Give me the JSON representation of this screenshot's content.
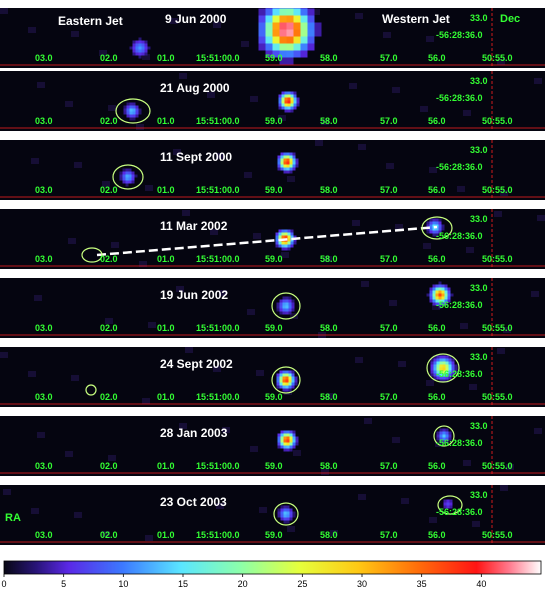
{
  "labels": {
    "eastern": "Eastern Jet",
    "western": "Western Jet",
    "ra": "RA",
    "dec": "Dec"
  },
  "ra_ticks": [
    "03.0",
    "02.0",
    "01.0",
    "15:51:00.0",
    "59.0",
    "58.0",
    "57.0",
    "56.0",
    "50:55.0"
  ],
  "dec_ticks": [
    "33.0",
    "-56:28:36.0"
  ],
  "panels": [
    {
      "date": "9 Jun 2000",
      "ellipses": [],
      "sources": [
        {
          "kind": "east",
          "dx": 140,
          "dy": 40,
          "r": 12,
          "peak": 0.25
        },
        {
          "kind": "core",
          "dx": 287,
          "dy": 22,
          "r": 32,
          "peak": 1.0
        }
      ]
    },
    {
      "date": "21 Aug 2000",
      "ellipses": [
        {
          "cx": 133,
          "cy": 40,
          "rx": 17,
          "ry": 12
        }
      ],
      "sources": [
        {
          "kind": "east",
          "dx": 132,
          "dy": 40,
          "r": 10,
          "peak": 0.3
        },
        {
          "kind": "core",
          "dx": 288,
          "dy": 30,
          "r": 11,
          "peak": 0.9
        }
      ]
    },
    {
      "date": "11 Sept 2000",
      "ellipses": [
        {
          "cx": 128,
          "cy": 37,
          "rx": 15,
          "ry": 12
        }
      ],
      "sources": [
        {
          "kind": "east",
          "dx": 128,
          "dy": 37,
          "r": 10,
          "peak": 0.28
        },
        {
          "kind": "core",
          "dx": 287,
          "dy": 22,
          "r": 11,
          "peak": 0.88
        }
      ]
    },
    {
      "date": "11 Mar 2002",
      "ellipses": [
        {
          "cx": 92,
          "cy": 46,
          "rx": 10,
          "ry": 7
        },
        {
          "cx": 437,
          "cy": 19,
          "rx": 15,
          "ry": 11
        }
      ],
      "sources": [
        {
          "kind": "west",
          "dx": 435,
          "dy": 18,
          "r": 10,
          "peak": 0.35
        },
        {
          "kind": "core",
          "dx": 285,
          "dy": 30,
          "r": 11,
          "peak": 0.9
        }
      ],
      "line": [
        [
          97,
          46
        ],
        [
          437,
          18
        ]
      ]
    },
    {
      "date": "19 Jun 2002",
      "ellipses": [
        {
          "cx": 286,
          "cy": 28,
          "rx": 14,
          "ry": 13
        }
      ],
      "sources": [
        {
          "kind": "core",
          "dx": 286,
          "dy": 28,
          "r": 11,
          "peak": 0.3
        },
        {
          "kind": "west",
          "dx": 440,
          "dy": 17,
          "r": 12,
          "peak": 0.82
        }
      ]
    },
    {
      "date": "24 Sept 2002",
      "ellipses": [
        {
          "cx": 91,
          "cy": 43,
          "rx": 5,
          "ry": 5
        },
        {
          "cx": 286,
          "cy": 33,
          "rx": 14,
          "ry": 13
        },
        {
          "cx": 443,
          "cy": 21,
          "rx": 16,
          "ry": 14
        }
      ],
      "sources": [
        {
          "kind": "core",
          "dx": 286,
          "dy": 33,
          "r": 11,
          "peak": 0.86
        },
        {
          "kind": "west",
          "dx": 443,
          "dy": 21,
          "r": 14,
          "peak": 0.65
        }
      ]
    },
    {
      "date": "28 Jan 2003",
      "ellipses": [
        {
          "cx": 444,
          "cy": 20,
          "rx": 10,
          "ry": 10
        }
      ],
      "sources": [
        {
          "kind": "core",
          "dx": 287,
          "dy": 24,
          "r": 11,
          "peak": 0.86
        },
        {
          "kind": "west",
          "dx": 444,
          "dy": 20,
          "r": 9,
          "peak": 0.3
        }
      ]
    },
    {
      "date": "23 Oct 2003",
      "ellipses": [
        {
          "cx": 286,
          "cy": 29,
          "rx": 12,
          "ry": 11
        },
        {
          "cx": 450,
          "cy": 20,
          "rx": 12,
          "ry": 9
        }
      ],
      "sources": [
        {
          "kind": "core",
          "dx": 286,
          "dy": 29,
          "r": 10,
          "peak": 0.3
        },
        {
          "kind": "west",
          "dx": 448,
          "dy": 19,
          "r": 9,
          "peak": 0.15
        }
      ]
    }
  ],
  "colorbar_ticks": [
    "0",
    "5",
    "10",
    "15",
    "20",
    "25",
    "30",
    "35",
    "40"
  ],
  "colors": {
    "line_red": "#ff2020",
    "tick_green": "#33ff33",
    "ellipse": "#c8ff80"
  }
}
